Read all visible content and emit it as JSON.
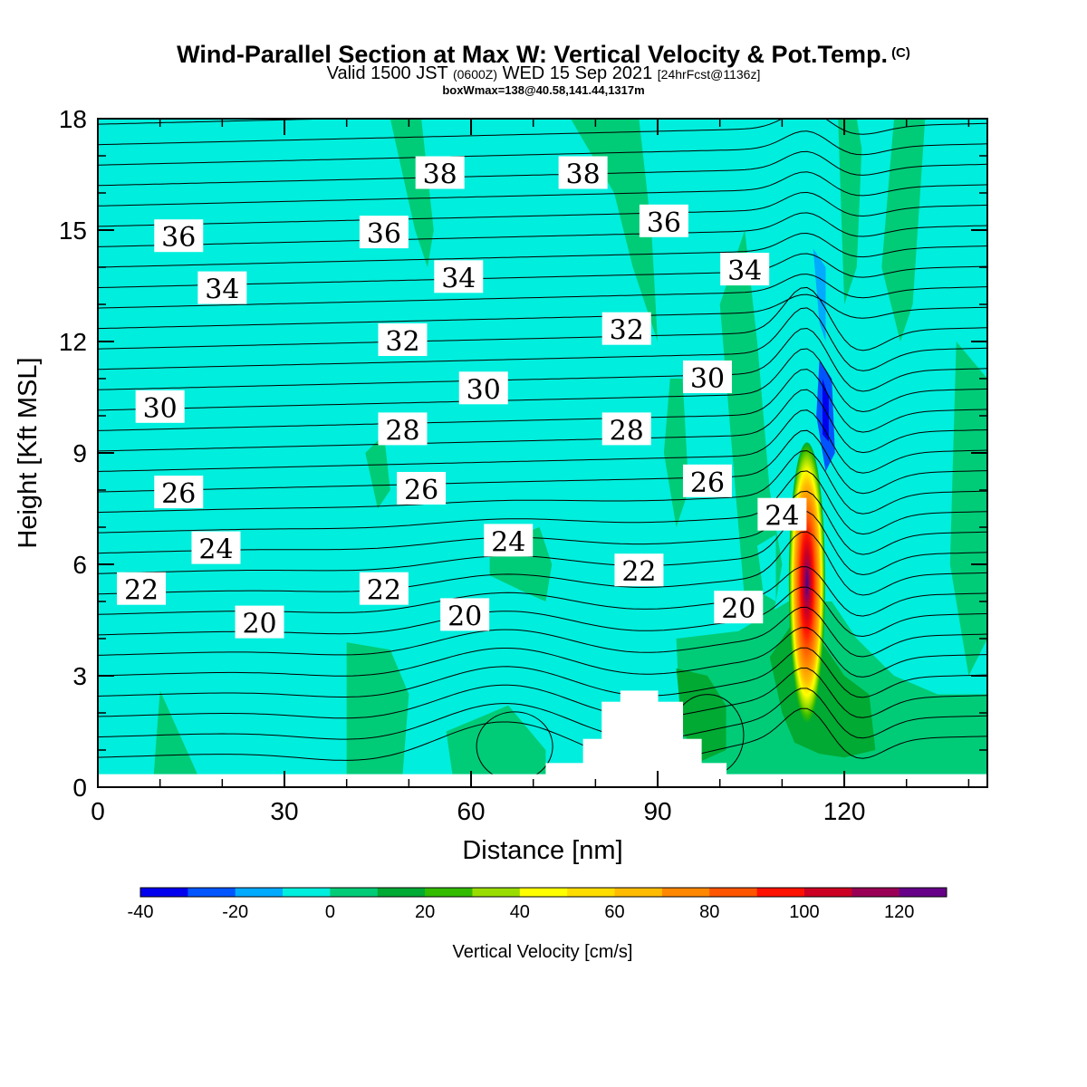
{
  "title": {
    "main": "Wind-Parallel Section at Max W: Vertical Velocity & Pot.Temp.",
    "copyright": "(C)",
    "valid_prefix": "Valid 1500 JST",
    "valid_utc": "(0600Z)",
    "valid_date": "WED 15 Sep 2021",
    "forecast": "[24hrFcst@1136z]",
    "boxwmax": "boxWmax=138@40.58,141.44,1317m"
  },
  "chart_data": {
    "type": "heatmap",
    "xlabel": "Distance [nm]",
    "ylabel": "Height [Kft MSL]",
    "xlim": [
      0,
      143
    ],
    "ylim": [
      0,
      18
    ],
    "xticks": [
      "0",
      "30",
      "60",
      "90",
      "120"
    ],
    "yticks": [
      "0",
      "3",
      "6",
      "9",
      "12",
      "15",
      "18"
    ],
    "background_color": "#00eedd",
    "colorbar": {
      "title": "Vertical Velocity [cm/s]",
      "tick_labels": [
        "-40",
        "-20",
        "0",
        "20",
        "40",
        "60",
        "80",
        "100",
        "120"
      ],
      "levels": [
        -40,
        -30,
        -20,
        -10,
        0,
        10,
        20,
        30,
        40,
        50,
        60,
        70,
        80,
        90,
        100,
        110,
        120,
        130
      ],
      "colors": [
        "#0000ee",
        "#0055ff",
        "#00aaff",
        "#00eedd",
        "#00cc77",
        "#00aa33",
        "#33bb00",
        "#99dd00",
        "#ffff00",
        "#ffdd00",
        "#ffbb00",
        "#ff8800",
        "#ff5500",
        "#ff1100",
        "#cc0022",
        "#990055",
        "#660088"
      ]
    },
    "terrain": [
      {
        "x0": 0,
        "x1": 72,
        "h": 0.35
      },
      {
        "x0": 72,
        "x1": 78,
        "h": 0.65
      },
      {
        "x0": 78,
        "x1": 81,
        "h": 1.3
      },
      {
        "x0": 81,
        "x1": 84,
        "h": 2.3
      },
      {
        "x0": 84,
        "x1": 90,
        "h": 2.6
      },
      {
        "x0": 90,
        "x1": 94,
        "h": 2.3
      },
      {
        "x0": 94,
        "x1": 97,
        "h": 1.3
      },
      {
        "x0": 97,
        "x1": 101,
        "h": 0.65
      },
      {
        "x0": 101,
        "x1": 143,
        "h": 0.35
      }
    ],
    "w_regions": [
      {
        "level": 0,
        "pts": [
          [
            47,
            18
          ],
          [
            52,
            18
          ],
          [
            54,
            15
          ],
          [
            53,
            14
          ],
          [
            51,
            15
          ],
          [
            49,
            16.5
          ]
        ]
      },
      {
        "level": 0,
        "pts": [
          [
            76,
            18
          ],
          [
            87,
            18
          ],
          [
            89,
            15
          ],
          [
            90,
            12
          ],
          [
            86,
            14
          ],
          [
            83,
            16
          ]
        ]
      },
      {
        "level": 0,
        "pts": [
          [
            92,
            11
          ],
          [
            94,
            11
          ],
          [
            95,
            8
          ],
          [
            93,
            7
          ],
          [
            91,
            9
          ]
        ]
      },
      {
        "level": 0,
        "pts": [
          [
            100,
            13
          ],
          [
            104,
            15
          ],
          [
            106,
            12
          ],
          [
            108,
            8
          ],
          [
            110,
            6
          ],
          [
            108,
            4
          ],
          [
            104,
            5
          ],
          [
            102,
            9
          ]
        ]
      },
      {
        "level": 0,
        "pts": [
          [
            119,
            18
          ],
          [
            123,
            18
          ],
          [
            122,
            14
          ],
          [
            120,
            13
          ]
        ]
      },
      {
        "level": 0,
        "pts": [
          [
            128,
            18
          ],
          [
            133,
            18
          ],
          [
            131,
            13
          ],
          [
            129,
            12
          ],
          [
            126,
            14
          ]
        ]
      },
      {
        "level": 0,
        "pts": [
          [
            138,
            12
          ],
          [
            143,
            11
          ],
          [
            143,
            4
          ],
          [
            140,
            3
          ],
          [
            137,
            6
          ]
        ]
      },
      {
        "level": 0,
        "pts": [
          [
            43,
            9
          ],
          [
            46,
            9.5
          ],
          [
            47,
            8
          ],
          [
            45,
            7.5
          ]
        ]
      },
      {
        "level": 0,
        "pts": [
          [
            63,
            6.5
          ],
          [
            71,
            7
          ],
          [
            73,
            6
          ],
          [
            72,
            5
          ],
          [
            68,
            5.3
          ],
          [
            63,
            5.7
          ]
        ]
      },
      {
        "level": 0,
        "pts": [
          [
            10,
            2.6
          ],
          [
            16,
            0.35
          ],
          [
            9,
            0.35
          ],
          [
            9.5,
            1.5
          ]
        ]
      },
      {
        "level": 0,
        "pts": [
          [
            40,
            3.9
          ],
          [
            47,
            3.7
          ],
          [
            50,
            2.5
          ],
          [
            49,
            0.35
          ],
          [
            40,
            0.35
          ]
        ]
      },
      {
        "level": 0,
        "pts": [
          [
            56,
            1.5
          ],
          [
            66,
            2.2
          ],
          [
            72,
            1
          ],
          [
            72,
            0.35
          ],
          [
            57,
            0.35
          ]
        ]
      },
      {
        "level": 0,
        "pts": [
          [
            93,
            4
          ],
          [
            103,
            4.2
          ],
          [
            111,
            5
          ],
          [
            118,
            5
          ],
          [
            122,
            4
          ],
          [
            128,
            3
          ],
          [
            135,
            2.5
          ],
          [
            143,
            2.5
          ],
          [
            143,
            0.35
          ],
          [
            94,
            0.35
          ]
        ]
      },
      {
        "level": 1,
        "pts": [
          [
            93,
            3.2
          ],
          [
            98,
            3
          ],
          [
            101,
            2.2
          ],
          [
            101,
            1
          ],
          [
            97,
            0.7
          ],
          [
            94,
            1.5
          ]
        ]
      },
      {
        "level": 1,
        "pts": [
          [
            108,
            3.5
          ],
          [
            112,
            4.5
          ],
          [
            116,
            4
          ],
          [
            120,
            3
          ],
          [
            124,
            2.5
          ],
          [
            125,
            1
          ],
          [
            120,
            0.8
          ],
          [
            116,
            0.9
          ],
          [
            112,
            1.2
          ],
          [
            110,
            2
          ]
        ]
      },
      {
        "level": -1,
        "pts": [
          [
            113,
            18
          ],
          [
            117,
            18
          ],
          [
            118,
            14
          ],
          [
            119,
            11
          ],
          [
            118,
            9
          ],
          [
            115,
            10
          ],
          [
            114,
            13
          ]
        ]
      },
      {
        "level": -1,
        "pts": [
          [
            122,
            18
          ],
          [
            125,
            18
          ],
          [
            124,
            16
          ]
        ]
      },
      {
        "level": -1,
        "pts": [
          [
            72,
            4.5
          ],
          [
            77,
            4.8
          ],
          [
            78,
            3.5
          ],
          [
            75,
            3.2
          ],
          [
            73,
            3.5
          ]
        ]
      },
      {
        "level": -1,
        "pts": [
          [
            106,
            6.5
          ],
          [
            109,
            6.8
          ],
          [
            109,
            5
          ],
          [
            107,
            5.2
          ]
        ]
      },
      {
        "level": -2,
        "pts": [
          [
            115,
            14.5
          ],
          [
            117,
            14
          ],
          [
            117,
            12
          ],
          [
            116,
            12.5
          ]
        ]
      },
      {
        "level": -3,
        "pts": [
          [
            116,
            11.5
          ],
          [
            118,
            11
          ],
          [
            118.5,
            9
          ],
          [
            117,
            8.5
          ],
          [
            115.5,
            10
          ]
        ]
      },
      {
        "level": -4,
        "pts": [
          [
            116.5,
            11
          ],
          [
            117.5,
            10.5
          ],
          [
            117.5,
            9.3
          ],
          [
            116.5,
            9.5
          ]
        ]
      }
    ],
    "updraft_core": {
      "x": 114,
      "y": 5.5,
      "peak": 138
    },
    "theta_labels": [
      {
        "x": 55,
        "y": 16.5,
        "v": "38"
      },
      {
        "x": 78,
        "y": 16.5,
        "v": "38"
      },
      {
        "x": 13,
        "y": 14.8,
        "v": "36"
      },
      {
        "x": 46,
        "y": 14.9,
        "v": "36"
      },
      {
        "x": 91,
        "y": 15.2,
        "v": "36"
      },
      {
        "x": 20,
        "y": 13.4,
        "v": "34"
      },
      {
        "x": 58,
        "y": 13.7,
        "v": "34"
      },
      {
        "x": 104,
        "y": 13.9,
        "v": "34"
      },
      {
        "x": 49,
        "y": 12.0,
        "v": "32"
      },
      {
        "x": 85,
        "y": 12.3,
        "v": "32"
      },
      {
        "x": 62,
        "y": 10.7,
        "v": "30"
      },
      {
        "x": 98,
        "y": 11.0,
        "v": "30"
      },
      {
        "x": 10,
        "y": 10.2,
        "v": "30"
      },
      {
        "x": 49,
        "y": 9.6,
        "v": "28"
      },
      {
        "x": 85,
        "y": 9.6,
        "v": "28"
      },
      {
        "x": 13,
        "y": 7.9,
        "v": "26"
      },
      {
        "x": 52,
        "y": 8.0,
        "v": "26"
      },
      {
        "x": 98,
        "y": 8.2,
        "v": "26"
      },
      {
        "x": 66,
        "y": 6.6,
        "v": "24"
      },
      {
        "x": 110,
        "y": 7.3,
        "v": "24"
      },
      {
        "x": 19,
        "y": 6.4,
        "v": "24"
      },
      {
        "x": 87,
        "y": 5.8,
        "v": "22"
      },
      {
        "x": 7,
        "y": 5.3,
        "v": "22"
      },
      {
        "x": 46,
        "y": 5.3,
        "v": "22"
      },
      {
        "x": 26,
        "y": 4.4,
        "v": "20"
      },
      {
        "x": 59,
        "y": 4.6,
        "v": "20"
      },
      {
        "x": 103,
        "y": 4.8,
        "v": "20"
      }
    ]
  }
}
